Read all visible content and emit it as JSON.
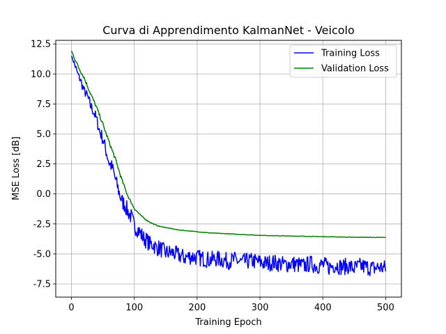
{
  "chart_data": {
    "type": "line",
    "title": "Curva di Apprendimento KalmanNet - Veicolo",
    "xlabel": "Training Epoch",
    "ylabel": "MSE Loss [dB]",
    "xlim": [
      -25,
      525
    ],
    "ylim": [
      -8.6,
      12.8
    ],
    "xticks": [
      0,
      100,
      200,
      300,
      400,
      500
    ],
    "yticks": [
      -7.5,
      -5.0,
      -2.5,
      0.0,
      2.5,
      5.0,
      7.5,
      10.0,
      12.5
    ],
    "grid": true,
    "legend_position": "top-right",
    "series": [
      {
        "name": "Training Loss",
        "color": "#0000ff",
        "x": [
          0,
          5,
          10,
          15,
          20,
          25,
          30,
          35,
          40,
          45,
          50,
          55,
          60,
          65,
          70,
          75,
          80,
          85,
          90,
          95,
          100,
          105,
          110,
          115,
          120,
          125,
          130,
          135,
          140,
          145,
          150,
          160,
          170,
          180,
          190,
          200,
          210,
          220,
          230,
          240,
          250,
          260,
          270,
          280,
          290,
          300,
          310,
          320,
          330,
          340,
          350,
          360,
          370,
          380,
          390,
          400,
          410,
          420,
          430,
          440,
          450,
          460,
          470,
          480,
          490,
          500
        ],
        "y": [
          11.5,
          10.8,
          10.0,
          9.4,
          8.6,
          8.2,
          7.4,
          6.9,
          6.2,
          5.2,
          4.6,
          3.6,
          2.6,
          2.2,
          1.2,
          0.3,
          -0.6,
          -0.9,
          -1.5,
          -1.9,
          -2.7,
          -2.9,
          -3.3,
          -3.7,
          -3.9,
          -4.2,
          -4.2,
          -4.5,
          -4.5,
          -4.7,
          -4.9,
          -4.9,
          -5.1,
          -5.3,
          -5.2,
          -5.3,
          -5.4,
          -5.5,
          -5.4,
          -5.5,
          -5.6,
          -5.5,
          -5.7,
          -5.6,
          -5.6,
          -5.7,
          -5.8,
          -5.7,
          -5.8,
          -5.9,
          -5.8,
          -5.9,
          -6.0,
          -5.8,
          -6.0,
          -5.9,
          -6.1,
          -5.9,
          -6.1,
          -6.0,
          -6.2,
          -6.0,
          -6.1,
          -6.2,
          -6.1,
          -6.2
        ],
        "noise": [
          0.0,
          0.3,
          0.3,
          0.4,
          0.4,
          0.4,
          0.5,
          0.5,
          0.5,
          0.5,
          0.6,
          0.6,
          0.6,
          0.6,
          0.6,
          0.7,
          0.7,
          0.7,
          0.7,
          0.7,
          0.7,
          0.7,
          0.7,
          0.7,
          0.7,
          0.7,
          0.7,
          0.7,
          0.7,
          0.7,
          0.7,
          0.7,
          0.7,
          0.7,
          0.7,
          0.7,
          0.7,
          0.7,
          0.7,
          0.7,
          0.7,
          0.7,
          0.7,
          0.7,
          0.7,
          0.7,
          0.7,
          0.7,
          0.7,
          0.7,
          0.7,
          0.7,
          0.7,
          0.7,
          0.7,
          0.7,
          0.7,
          0.7,
          0.7,
          0.7,
          0.7,
          0.7,
          0.7,
          0.7,
          0.7,
          0.7
        ]
      },
      {
        "name": "Validation Loss",
        "color": "#008000",
        "x": [
          0,
          10,
          20,
          30,
          40,
          50,
          60,
          70,
          80,
          90,
          100,
          110,
          120,
          130,
          140,
          150,
          160,
          170,
          180,
          190,
          200,
          220,
          240,
          260,
          280,
          300,
          320,
          340,
          360,
          380,
          400,
          420,
          440,
          460,
          480,
          500
        ],
        "y": [
          11.9,
          10.7,
          9.7,
          8.4,
          7.2,
          5.8,
          4.3,
          2.9,
          1.2,
          -0.2,
          -1.2,
          -1.8,
          -2.2,
          -2.5,
          -2.7,
          -2.8,
          -2.9,
          -3.0,
          -3.05,
          -3.1,
          -3.15,
          -3.25,
          -3.3,
          -3.35,
          -3.4,
          -3.45,
          -3.48,
          -3.5,
          -3.52,
          -3.54,
          -3.56,
          -3.58,
          -3.6,
          -3.61,
          -3.62,
          -3.63
        ],
        "noise": [
          0.1,
          0.15,
          0.15,
          0.15,
          0.15,
          0.15,
          0.15,
          0.15,
          0.15,
          0.1,
          0.1,
          0.08,
          0.05,
          0.04,
          0.03,
          0.03,
          0.02,
          0.02,
          0.02,
          0.02,
          0.02,
          0.02,
          0.02,
          0.02,
          0.02,
          0.02,
          0.02,
          0.02,
          0.02,
          0.02,
          0.02,
          0.02,
          0.02,
          0.02,
          0.02,
          0.02
        ]
      }
    ]
  }
}
